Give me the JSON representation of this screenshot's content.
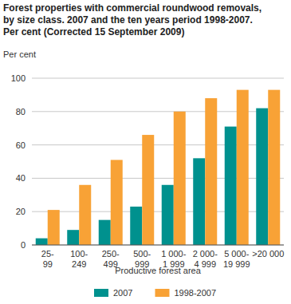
{
  "chart_data": {
    "type": "bar",
    "title": "Forest properties with commercial roundwood removals,\nby size class. 2007 and the ten years period 1998-2007.\nPer cent (Corrected 15 September 2009)",
    "y_label": "Per cent",
    "x_label": "Productive forest area",
    "categories": [
      "25-\n99",
      "100-\n249",
      "250-\n499",
      "500-\n999",
      "1 000-\n1 999",
      "2 000-\n4 999",
      "5 000-\n19 999",
      ">20 000"
    ],
    "series": [
      {
        "name": "2007",
        "color": "#00918e",
        "values": [
          4,
          9,
          15,
          23,
          36,
          52,
          71,
          82
        ]
      },
      {
        "name": "1998-2007",
        "color": "#f8a236",
        "values": [
          21,
          36,
          51,
          66,
          80,
          88,
          93,
          93
        ]
      }
    ],
    "ylim": [
      0,
      100
    ],
    "yticks": [
      0,
      20,
      40,
      60,
      80,
      100
    ],
    "grid": true,
    "legend": "bottom"
  }
}
